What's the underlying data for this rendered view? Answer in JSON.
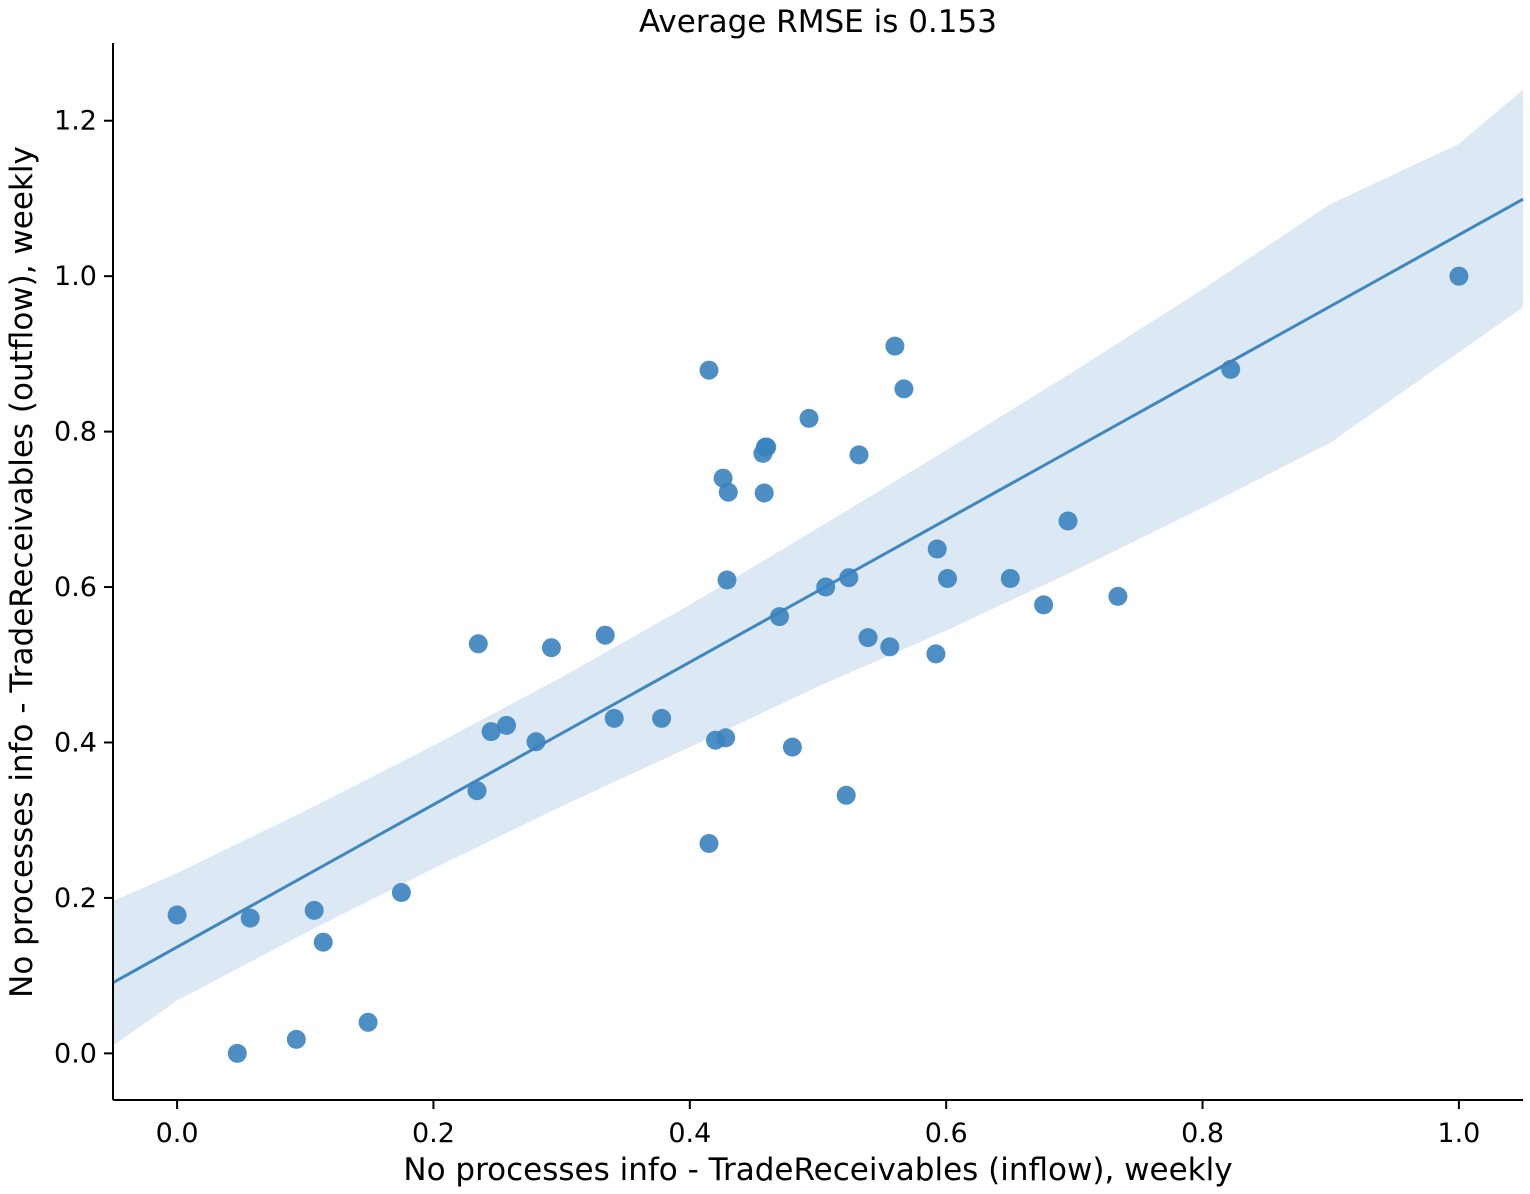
{
  "chart_data": {
    "type": "scatter",
    "title": "Average RMSE is 0.153",
    "xlabel": "No processes info - TradeReceivables (inflow), weekly",
    "ylabel": "No processes info - TradeReceivables (outflow), weekly",
    "xlim": [
      -0.05,
      1.05
    ],
    "ylim": [
      -0.06,
      1.3
    ],
    "xticks": [
      0.0,
      0.2,
      0.4,
      0.6,
      0.8,
      1.0
    ],
    "xtick_labels": [
      "0.0",
      "0.2",
      "0.4",
      "0.6",
      "0.8",
      "1.0"
    ],
    "yticks": [
      0.0,
      0.2,
      0.4,
      0.6,
      0.8,
      1.0,
      1.2
    ],
    "ytick_labels": [
      "0.0",
      "0.2",
      "0.4",
      "0.6",
      "0.8",
      "1.0",
      "1.2"
    ],
    "grid": false,
    "colors": {
      "points": "#3a83bf",
      "line": "#3f87c0",
      "band": "#dce8f3"
    },
    "series": [
      {
        "points": [
          [
            0.0,
            0.178
          ],
          [
            0.047,
            0.0
          ],
          [
            0.057,
            0.174
          ],
          [
            0.093,
            0.018
          ],
          [
            0.107,
            0.184
          ],
          [
            0.114,
            0.143
          ],
          [
            0.149,
            0.04
          ],
          [
            0.175,
            0.207
          ],
          [
            0.234,
            0.338
          ],
          [
            0.235,
            0.527
          ],
          [
            0.245,
            0.414
          ],
          [
            0.257,
            0.422
          ],
          [
            0.28,
            0.401
          ],
          [
            0.292,
            0.522
          ],
          [
            0.334,
            0.538
          ],
          [
            0.341,
            0.431
          ],
          [
            0.378,
            0.431
          ],
          [
            0.415,
            0.879
          ],
          [
            0.415,
            0.27
          ],
          [
            0.42,
            0.403
          ],
          [
            0.426,
            0.74
          ],
          [
            0.428,
            0.406
          ],
          [
            0.429,
            0.609
          ],
          [
            0.43,
            0.722
          ],
          [
            0.457,
            0.772
          ],
          [
            0.458,
            0.721
          ],
          [
            0.459,
            0.78
          ],
          [
            0.46,
            0.78
          ],
          [
            0.47,
            0.562
          ],
          [
            0.48,
            0.394
          ],
          [
            0.493,
            0.817
          ],
          [
            0.506,
            0.6
          ],
          [
            0.522,
            0.332
          ],
          [
            0.524,
            0.612
          ],
          [
            0.532,
            0.77
          ],
          [
            0.539,
            0.535
          ],
          [
            0.556,
            0.523
          ],
          [
            0.56,
            0.91
          ],
          [
            0.567,
            0.855
          ],
          [
            0.592,
            0.514
          ],
          [
            0.593,
            0.649
          ],
          [
            0.601,
            0.611
          ],
          [
            0.65,
            0.611
          ],
          [
            0.676,
            0.577
          ],
          [
            0.695,
            0.685
          ],
          [
            0.734,
            0.588
          ],
          [
            0.822,
            0.88
          ],
          [
            1.0,
            1.0
          ]
        ]
      }
    ],
    "regression": {
      "x": [
        -0.05,
        1.05
      ],
      "y": [
        0.091,
        1.099
      ]
    },
    "confidence_band": {
      "x": [
        -0.05,
        0.0,
        0.1,
        0.2,
        0.3,
        0.4,
        0.5,
        0.6,
        0.7,
        0.8,
        0.9,
        1.0,
        1.05
      ],
      "upper": [
        0.196,
        0.232,
        0.312,
        0.396,
        0.484,
        0.577,
        0.676,
        0.776,
        0.878,
        0.983,
        1.093,
        1.17,
        1.24
      ],
      "lower": [
        0.01,
        0.068,
        0.155,
        0.238,
        0.318,
        0.394,
        0.472,
        0.544,
        0.621,
        0.702,
        0.786,
        0.902,
        0.96
      ]
    }
  }
}
